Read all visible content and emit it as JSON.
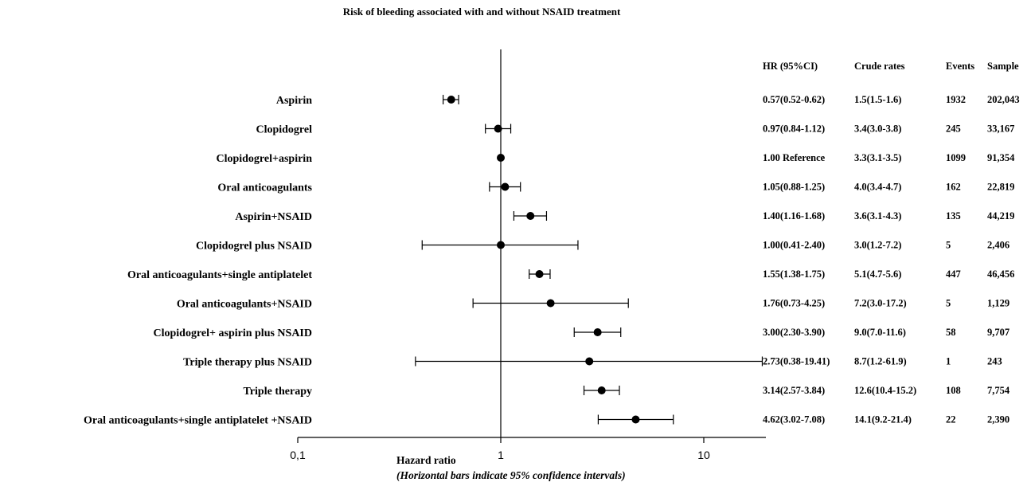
{
  "chart_data": {
    "type": "scatter",
    "title": "Risk of bleeding associated with and without NSAID  treatment",
    "xlabel": "Hazard ratio",
    "xlabel_note": "(Horizontal bars indicate 95% confidence intervals)",
    "x_scale": "log",
    "xlim": [
      0.1,
      20
    ],
    "reference_line": 1,
    "x_ticks": [
      {
        "value": 0.1,
        "label": "0,1"
      },
      {
        "value": 1,
        "label": "1"
      },
      {
        "value": 10,
        "label": "10"
      }
    ],
    "marker_color": "#000000",
    "columns": [
      "HR (95%CI)",
      "Crude rates",
      "Events",
      "Sample"
    ],
    "rows": [
      {
        "label": "Aspirin",
        "hr": 0.57,
        "lo": 0.52,
        "hi": 0.62,
        "hr_text": "0.57(0.52-0.62)",
        "crude": "1.5(1.5-1.6)",
        "events": "1932",
        "sample": "202,043"
      },
      {
        "label": "Clopidogrel",
        "hr": 0.97,
        "lo": 0.84,
        "hi": 1.12,
        "hr_text": "0.97(0.84-1.12)",
        "crude": "3.4(3.0-3.8)",
        "events": "245",
        "sample": "33,167"
      },
      {
        "label": "Clopidogrel+aspirin",
        "hr": 1.0,
        "lo": null,
        "hi": null,
        "hr_text": "1.00 Reference",
        "crude": "3.3(3.1-3.5)",
        "events": "1099",
        "sample": "91,354"
      },
      {
        "label": "Oral anticoagulants",
        "hr": 1.05,
        "lo": 0.88,
        "hi": 1.25,
        "hr_text": "1.05(0.88-1.25)",
        "crude": "4.0(3.4-4.7)",
        "events": "162",
        "sample": "22,819"
      },
      {
        "label": "Aspirin+NSAID",
        "hr": 1.4,
        "lo": 1.16,
        "hi": 1.68,
        "hr_text": "1.40(1.16-1.68)",
        "crude": "3.6(3.1-4.3)",
        "events": "135",
        "sample": "44,219"
      },
      {
        "label": "Clopidogrel plus NSAID",
        "hr": 1.0,
        "lo": 0.41,
        "hi": 2.4,
        "hr_text": "1.00(0.41-2.40)",
        "crude": "3.0(1.2-7.2)",
        "events": "5",
        "sample": "2,406"
      },
      {
        "label": "Oral anticoagulants+single antiplatelet",
        "hr": 1.55,
        "lo": 1.38,
        "hi": 1.75,
        "hr_text": "1.55(1.38-1.75)",
        "crude": "5.1(4.7-5.6)",
        "events": "447",
        "sample": "46,456"
      },
      {
        "label": "Oral anticoagulants+NSAID",
        "hr": 1.76,
        "lo": 0.73,
        "hi": 4.25,
        "hr_text": "1.76(0.73-4.25)",
        "crude": "7.2(3.0-17.2)",
        "events": "5",
        "sample": "1,129"
      },
      {
        "label": "Clopidogrel+ aspirin plus NSAID",
        "hr": 3.0,
        "lo": 2.3,
        "hi": 3.9,
        "hr_text": "3.00(2.30-3.90)",
        "crude": "9.0(7.0-11.6)",
        "events": "58",
        "sample": "9,707"
      },
      {
        "label": "Triple therapy plus  NSAID",
        "hr": 2.73,
        "lo": 0.38,
        "hi": 19.41,
        "hr_text": "2.73(0.38-19.41)",
        "crude": "8.7(1.2-61.9)",
        "events": "1",
        "sample": "243"
      },
      {
        "label": "Triple therapy",
        "hr": 3.14,
        "lo": 2.57,
        "hi": 3.84,
        "hr_text": "3.14(2.57-3.84)",
        "crude": "12.6(10.4-15.2)",
        "events": "108",
        "sample": "7,754"
      },
      {
        "label": "Oral anticoagulants+single antiplatelet +NSAID",
        "hr": 4.62,
        "lo": 3.02,
        "hi": 7.08,
        "hr_text": "4.62(3.02-7.08)",
        "crude": "14.1(9.2-21.4)",
        "events": "22",
        "sample": "2,390"
      }
    ]
  }
}
